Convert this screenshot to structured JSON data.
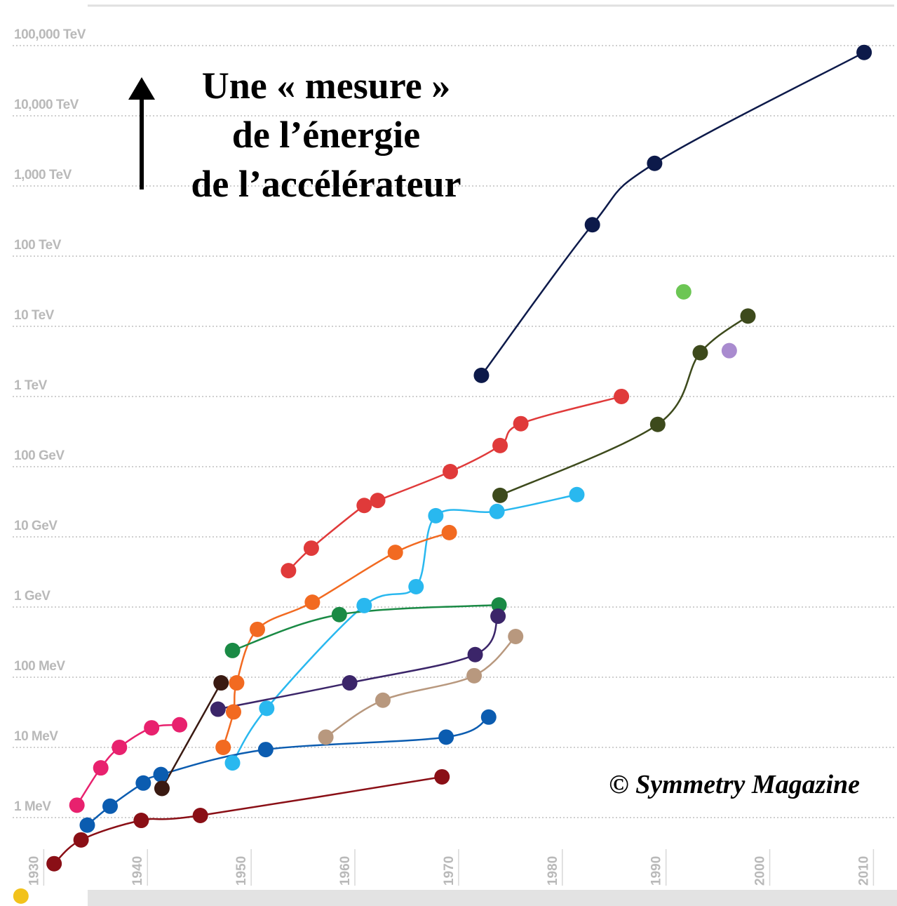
{
  "chart_data": {
    "type": "line",
    "log_y": true,
    "grid": true,
    "annotation": [
      "Une « mesure »",
      "de l’énergie",
      "de l’accélérateur"
    ],
    "credit": "© Symmetry Magazine",
    "xlim": [
      1927,
      2012
    ],
    "xticks": [
      1930,
      1940,
      1950,
      1960,
      1970,
      1980,
      1990,
      2000,
      2010
    ],
    "ylim": [
      0.063,
      316227766017
    ],
    "yticks": [
      {
        "value": 1,
        "label": "1 MeV"
      },
      {
        "value": 10,
        "label": "10 MeV"
      },
      {
        "value": 100,
        "label": "100 MeV"
      },
      {
        "value": 1000,
        "label": "1 GeV"
      },
      {
        "value": 10000,
        "label": "10 GeV"
      },
      {
        "value": 100000,
        "label": "100 GeV"
      },
      {
        "value": 1000000,
        "label": "1 TeV"
      },
      {
        "value": 10000000,
        "label": "10 TeV"
      },
      {
        "value": 100000000,
        "label": "100 TeV"
      },
      {
        "value": 1000000000,
        "label": "1,000 TeV"
      },
      {
        "value": 10000000000,
        "label": "10,000 TeV"
      },
      {
        "value": 100000000000,
        "label": "100,000 TeV"
      }
    ],
    "series": [
      {
        "color": "#0d1a4a",
        "x": [
          1972.2,
          1982.9,
          1988.9,
          2009.1
        ],
        "values": [
          2000000,
          280000000,
          2100000000,
          80000000000
        ]
      },
      {
        "color": "#6cc654",
        "x": [
          1991.7
        ],
        "values": [
          31000000
        ]
      },
      {
        "color": "#a98bcf",
        "x": [
          1996.1
        ],
        "values": [
          4500000
        ]
      },
      {
        "color": "#3d4a1c",
        "x": [
          1974,
          1989.2,
          1993.3,
          1997.9
        ],
        "values": [
          39000,
          400000,
          4200000,
          14000000
        ]
      },
      {
        "color": "#e03a3a",
        "x": [
          1953.6,
          1955.8,
          1960.9,
          1962.2,
          1969.2,
          1974,
          1976,
          1985.7
        ],
        "values": [
          3300,
          6900,
          28000,
          33000,
          85000,
          200000,
          410000,
          1000000
        ]
      },
      {
        "color": "#29b8ef",
        "x": [
          1948.2,
          1951.5,
          1960.9,
          1965.9,
          1967.8,
          1973.7,
          1981.4
        ],
        "values": [
          6,
          36,
          1050,
          1950,
          20000,
          23000,
          40000
        ]
      },
      {
        "color": "#f26a21",
        "x": [
          1947.3,
          1948.3,
          1948.6,
          1950.6,
          1955.9,
          1963.9,
          1969.1
        ],
        "values": [
          10,
          32,
          83,
          480,
          1170,
          6000,
          11500
        ]
      },
      {
        "color": "#1a8a45",
        "x": [
          1948.2,
          1958.5,
          1973.9
        ],
        "values": [
          240,
          780,
          1070
        ]
      },
      {
        "color": "#3b2569",
        "x": [
          1946.8,
          1959.5,
          1971.6,
          1973.8
        ],
        "values": [
          35,
          83,
          210,
          740
        ]
      },
      {
        "color": "#b8987e",
        "x": [
          1957.2,
          1962.7,
          1971.5,
          1975.5
        ],
        "values": [
          14,
          47,
          105,
          380
        ]
      },
      {
        "color": "#0b5cb0",
        "x": [
          1934.2,
          1936.4,
          1939.6,
          1941.3,
          1951.4,
          1968.8,
          1972.9
        ],
        "values": [
          0.78,
          1.45,
          3.1,
          4.1,
          9.3,
          14,
          27
        ]
      },
      {
        "color": "#e8216e",
        "x": [
          1933.2,
          1935.5,
          1937.3,
          1940.4,
          1943.1
        ],
        "values": [
          1.5,
          5.1,
          10,
          19,
          21
        ]
      },
      {
        "color": "#3a1a12",
        "x": [
          1941.4,
          1947.1
        ],
        "values": [
          2.6,
          83
        ]
      },
      {
        "color": "#8a0f16",
        "x": [
          1931,
          1933.6,
          1939.4,
          1945.1,
          1968.4
        ],
        "values": [
          0.22,
          0.48,
          0.91,
          1.07,
          3.8
        ]
      },
      {
        "color": "#f2c21b",
        "x": [
          1927.8
        ],
        "values": [
          0.076
        ]
      }
    ]
  }
}
